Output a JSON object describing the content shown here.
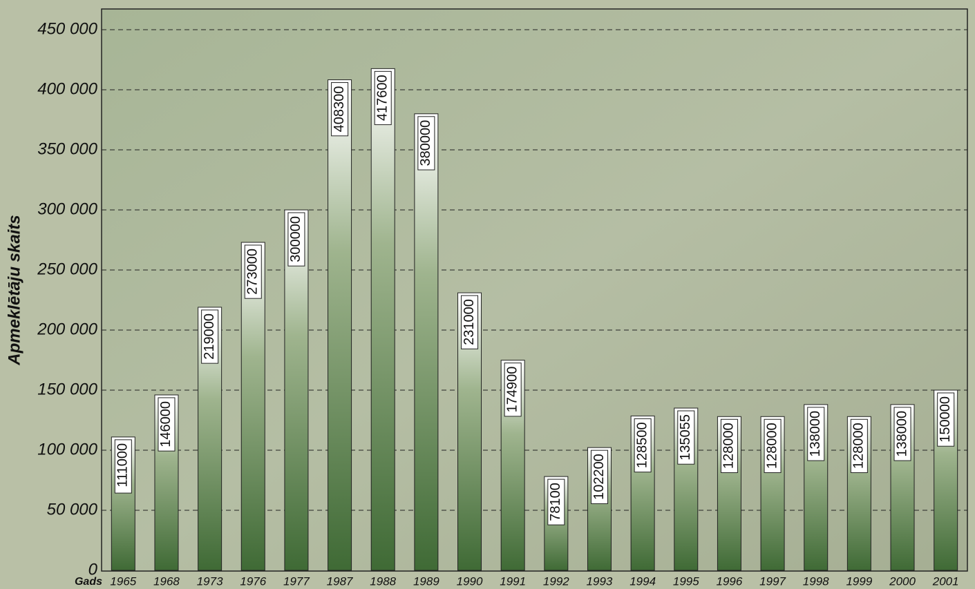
{
  "chart_data": {
    "type": "bar",
    "y_label": "Apmeklētāju skaits",
    "x_label": "Gads",
    "categories": [
      "1965",
      "1968",
      "1973",
      "1976",
      "1977",
      "1987",
      "1988",
      "1989",
      "1990",
      "1991",
      "1992",
      "1993",
      "1994",
      "1995",
      "1996",
      "1997",
      "1998",
      "1999",
      "2000",
      "2001"
    ],
    "values": [
      111000,
      146000,
      219000,
      273000,
      300000,
      408300,
      417600,
      380000,
      231000,
      174900,
      78100,
      102200,
      128500,
      135055,
      128000,
      128000,
      138000,
      128000,
      138000,
      150000
    ],
    "color": "#3f6a35",
    "ylim": [
      0,
      450000
    ],
    "yticks": [
      0,
      {
        "value": 50000,
        "label": "50 000"
      },
      {
        "value": 100000,
        "label": "100 000"
      },
      {
        "value": 150000,
        "label": "150 000"
      },
      {
        "value": 200000,
        "label": "200 000"
      },
      {
        "value": 250000,
        "label": "250 000"
      },
      {
        "value": 300000,
        "label": "300 000"
      },
      {
        "value": 350000,
        "label": "350 000"
      },
      {
        "value": 400000,
        "label": "400 000"
      },
      {
        "value": 450000,
        "label": "450 000"
      }
    ],
    "grid": true
  }
}
